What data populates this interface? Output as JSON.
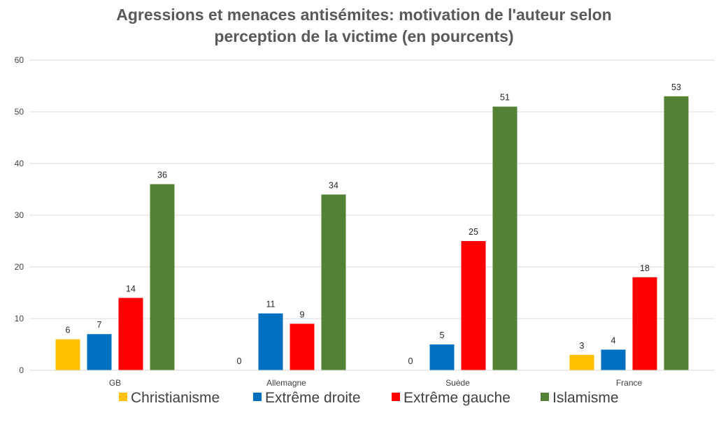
{
  "chart_data": {
    "type": "bar",
    "title_lines": [
      "Agressions et menaces antisémites: motivation de l'auteur selon",
      "perception de la victime (en pourcents)"
    ],
    "categories": [
      "GB",
      "Allemagne",
      "Suède",
      "France"
    ],
    "series": [
      {
        "name": "Christianisme",
        "color": "#FFC000",
        "values": [
          6,
          0,
          0,
          3
        ]
      },
      {
        "name": "Extrême droite",
        "color": "#0070C0",
        "values": [
          7,
          11,
          5,
          4
        ]
      },
      {
        "name": "Extrême gauche",
        "color": "#FF0000",
        "values": [
          14,
          9,
          25,
          18
        ]
      },
      {
        "name": "Islamisme",
        "color": "#548235",
        "values": [
          36,
          34,
          51,
          53
        ]
      }
    ],
    "ylim": [
      0,
      60
    ],
    "yticks": [
      0,
      10,
      20,
      30,
      40,
      50,
      60
    ],
    "grid": true,
    "legend_position": "bottom"
  }
}
